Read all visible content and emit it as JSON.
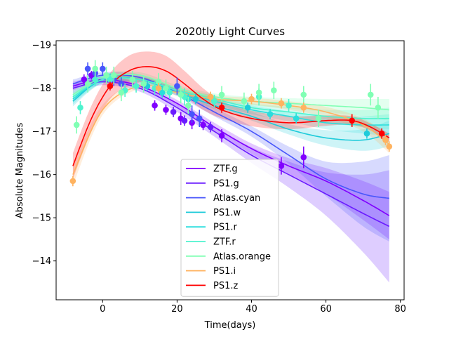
{
  "chart_data": {
    "type": "line",
    "title": "2020tly Light Curves",
    "xlabel": "Time(days)",
    "ylabel": "Absolute Magnitudes",
    "xlim": [
      -12.5,
      81
    ],
    "ylim": [
      -13.1,
      -19.1
    ],
    "y_inverted": true,
    "xticks": [
      0,
      20,
      40,
      60,
      80
    ],
    "xtick_labels": [
      "0",
      "20",
      "40",
      "60",
      "80"
    ],
    "yticks": [
      -14,
      -15,
      -16,
      -17,
      -18,
      -19
    ],
    "ytick_labels": [
      "−14",
      "−15",
      "−16",
      "−17",
      "−18",
      "−19"
    ],
    "grid": false,
    "legend_position": "lower-center",
    "series": [
      {
        "name": "ZTF.g",
        "color": "#8000ff",
        "fit_x": [
          -8,
          0,
          10,
          20,
          30,
          40,
          50,
          60,
          70,
          77
        ],
        "fit_y": [
          -18.05,
          -18.2,
          -18.05,
          -17.65,
          -17.1,
          -16.6,
          -16.2,
          -15.85,
          -15.4,
          -15.05
        ],
        "band_halfwidth": [
          0.1,
          0.07,
          0.07,
          0.08,
          0.1,
          0.12,
          0.18,
          0.3,
          0.45,
          0.55
        ],
        "points": [
          {
            "x": -5,
            "y": -18.2,
            "err": 0.12
          },
          {
            "x": -3,
            "y": -18.3,
            "err": 0.1
          },
          {
            "x": 14,
            "y": -17.6,
            "err": 0.12
          },
          {
            "x": 17,
            "y": -17.5,
            "err": 0.12
          },
          {
            "x": 21,
            "y": -17.3,
            "err": 0.15
          },
          {
            "x": 24,
            "y": -17.2,
            "err": 0.15
          },
          {
            "x": 27,
            "y": -17.15,
            "err": 0.12
          },
          {
            "x": 32,
            "y": -16.9,
            "err": 0.15
          },
          {
            "x": 48,
            "y": -16.2,
            "err": 0.2
          },
          {
            "x": 54,
            "y": -16.4,
            "err": 0.25
          }
        ]
      },
      {
        "name": "PS1.g",
        "color": "#6a1bff",
        "fit_x": [
          -8,
          0,
          10,
          20,
          30,
          40,
          50,
          60,
          70,
          77
        ],
        "fit_y": [
          -18.0,
          -18.15,
          -18.0,
          -17.55,
          -17.0,
          -16.45,
          -16.0,
          -15.55,
          -15.1,
          -14.8
        ],
        "band_halfwidth": [
          0.12,
          0.08,
          0.08,
          0.1,
          0.12,
          0.18,
          0.3,
          0.5,
          0.9,
          1.3
        ],
        "points": [
          {
            "x": 19,
            "y": -17.45,
            "err": 0.12
          },
          {
            "x": 22,
            "y": -17.25,
            "err": 0.12
          },
          {
            "x": 29,
            "y": -17.1,
            "err": 0.12
          }
        ]
      },
      {
        "name": "Atlas.cyan",
        "color": "#4856fb",
        "fit_x": [
          -8,
          0,
          10,
          20,
          30,
          40,
          50,
          60,
          70,
          77
        ],
        "fit_y": [
          -18.1,
          -18.3,
          -18.25,
          -17.9,
          -17.45,
          -17.0,
          -16.45,
          -15.9,
          -15.55,
          -15.45
        ],
        "band_halfwidth": [
          0.1,
          0.07,
          0.07,
          0.08,
          0.1,
          0.12,
          0.2,
          0.4,
          0.75,
          1.0
        ],
        "points": [
          {
            "x": -4,
            "y": -18.45,
            "err": 0.15
          },
          {
            "x": -2,
            "y": -18.35,
            "err": 0.15
          },
          {
            "x": 0,
            "y": -18.45,
            "err": 0.15
          },
          {
            "x": 3,
            "y": -18.2,
            "err": 0.15
          },
          {
            "x": 5,
            "y": -18.1,
            "err": 0.15
          },
          {
            "x": 20,
            "y": -18.05,
            "err": 0.2
          },
          {
            "x": 24,
            "y": -17.4,
            "err": 0.2
          },
          {
            "x": 26,
            "y": -17.3,
            "err": 0.2
          }
        ]
      },
      {
        "name": "PS1.w",
        "color": "#1ecbda",
        "fit_x": [
          -8,
          0,
          10,
          20,
          30,
          40,
          50,
          60,
          70,
          77
        ],
        "fit_y": [
          -17.7,
          -18.2,
          -18.2,
          -17.9,
          -17.6,
          -17.35,
          -17.05,
          -16.85,
          -16.8,
          -16.95
        ],
        "band_halfwidth": [
          0.12,
          0.08,
          0.07,
          0.07,
          0.08,
          0.1,
          0.12,
          0.18,
          0.25,
          0.3
        ],
        "points": [
          {
            "x": 12,
            "y": -18.05,
            "err": 0.12
          },
          {
            "x": 25,
            "y": -17.75,
            "err": 0.12
          },
          {
            "x": 39,
            "y": -17.55,
            "err": 0.12
          },
          {
            "x": 71,
            "y": -16.95,
            "err": 0.12
          }
        ]
      },
      {
        "name": "PS1.r",
        "color": "#2adddd",
        "fit_x": [
          -8,
          0,
          10,
          20,
          30,
          40,
          50,
          60,
          70,
          77
        ],
        "fit_y": [
          -17.75,
          -18.2,
          -18.2,
          -17.95,
          -17.7,
          -17.5,
          -17.35,
          -17.2,
          -17.15,
          -17.15
        ],
        "band_halfwidth": [
          0.12,
          0.08,
          0.07,
          0.07,
          0.08,
          0.1,
          0.12,
          0.15,
          0.2,
          0.25
        ],
        "points": [
          {
            "x": 16,
            "y": -17.9,
            "err": 0.12
          },
          {
            "x": 23,
            "y": -17.75,
            "err": 0.12
          },
          {
            "x": 45,
            "y": -17.4,
            "err": 0.12
          },
          {
            "x": 52,
            "y": -17.3,
            "err": 0.12
          }
        ]
      },
      {
        "name": "ZTF.r",
        "color": "#4df3ce",
        "fit_x": [
          -8,
          0,
          10,
          20,
          30,
          40,
          50,
          60,
          70,
          77
        ],
        "fit_y": [
          -17.8,
          -18.2,
          -18.2,
          -17.95,
          -17.75,
          -17.55,
          -17.45,
          -17.35,
          -17.3,
          -17.3
        ],
        "band_halfwidth": [
          0.12,
          0.08,
          0.07,
          0.07,
          0.08,
          0.1,
          0.12,
          0.15,
          0.2,
          0.25
        ],
        "points": [
          {
            "x": -6,
            "y": -17.55,
            "err": 0.15
          },
          {
            "x": -2,
            "y": -18.2,
            "err": 0.15
          },
          {
            "x": 2,
            "y": -18.2,
            "err": 0.15
          },
          {
            "x": 6,
            "y": -17.95,
            "err": 0.15
          },
          {
            "x": 9,
            "y": -18.05,
            "err": 0.15
          },
          {
            "x": 14,
            "y": -18.0,
            "err": 0.15
          },
          {
            "x": 18,
            "y": -17.9,
            "err": 0.15
          },
          {
            "x": 22,
            "y": -17.8,
            "err": 0.2
          },
          {
            "x": 30,
            "y": -17.7,
            "err": 0.15
          },
          {
            "x": 42,
            "y": -17.8,
            "err": 0.2
          },
          {
            "x": 50,
            "y": -17.6,
            "err": 0.15
          },
          {
            "x": 58,
            "y": -17.3,
            "err": 0.2
          }
        ]
      },
      {
        "name": "Atlas.orange",
        "color": "#80ffb4",
        "fit_x": [
          -8,
          0,
          10,
          20,
          30,
          40,
          50,
          60,
          70,
          77
        ],
        "fit_y": [
          -17.85,
          -18.25,
          -18.3,
          -18.0,
          -17.8,
          -17.7,
          -17.65,
          -17.6,
          -17.55,
          -17.5
        ],
        "band_halfwidth": [
          0.12,
          0.08,
          0.07,
          0.07,
          0.08,
          0.1,
          0.12,
          0.15,
          0.2,
          0.25
        ],
        "points": [
          {
            "x": -7,
            "y": -17.15,
            "err": 0.2
          },
          {
            "x": -4,
            "y": -18.1,
            "err": 0.2
          },
          {
            "x": -2,
            "y": -18.45,
            "err": 0.2
          },
          {
            "x": 1,
            "y": -18.3,
            "err": 0.2
          },
          {
            "x": 3,
            "y": -18.3,
            "err": 0.2
          },
          {
            "x": 5,
            "y": -17.9,
            "err": 0.2
          },
          {
            "x": 8,
            "y": -18.2,
            "err": 0.2
          },
          {
            "x": 11,
            "y": -18.1,
            "err": 0.2
          },
          {
            "x": 15,
            "y": -18.15,
            "err": 0.2
          },
          {
            "x": 17,
            "y": -18.0,
            "err": 0.2
          },
          {
            "x": 21,
            "y": -17.85,
            "err": 0.2
          },
          {
            "x": 23,
            "y": -17.6,
            "err": 0.2
          },
          {
            "x": 32,
            "y": -17.85,
            "err": 0.2
          },
          {
            "x": 38,
            "y": -17.7,
            "err": 0.2
          },
          {
            "x": 42,
            "y": -17.9,
            "err": 0.2
          },
          {
            "x": 46,
            "y": -17.95,
            "err": 0.2
          },
          {
            "x": 54,
            "y": -17.85,
            "err": 0.2
          },
          {
            "x": 58,
            "y": -17.3,
            "err": 0.2
          },
          {
            "x": 72,
            "y": -17.85,
            "err": 0.25
          },
          {
            "x": 74,
            "y": -17.55,
            "err": 0.25
          }
        ]
      },
      {
        "name": "PS1.i",
        "color": "#ffb360",
        "fit_x": [
          -8,
          0,
          10,
          20,
          30,
          40,
          50,
          60,
          70,
          77
        ],
        "fit_y": [
          -16.0,
          -17.5,
          -18.05,
          -17.9,
          -17.75,
          -17.7,
          -17.6,
          -17.45,
          -17.15,
          -16.7
        ],
        "band_halfwidth": [
          0.25,
          0.12,
          0.07,
          0.07,
          0.08,
          0.08,
          0.1,
          0.12,
          0.15,
          0.2
        ],
        "points": [
          {
            "x": -8,
            "y": -15.85,
            "err": 0.12
          },
          {
            "x": 15,
            "y": -18.0,
            "err": 0.12
          },
          {
            "x": 29,
            "y": -17.8,
            "err": 0.12
          },
          {
            "x": 40,
            "y": -17.75,
            "err": 0.12
          },
          {
            "x": 48,
            "y": -17.65,
            "err": 0.12
          },
          {
            "x": 54,
            "y": -17.55,
            "err": 0.12
          },
          {
            "x": 76,
            "y": -16.8,
            "err": 0.12
          },
          {
            "x": 77,
            "y": -16.65,
            "err": 0.12
          }
        ]
      },
      {
        "name": "PS1.z",
        "color": "#ff0000",
        "fit_x": [
          -8,
          -3,
          2,
          7,
          12,
          17,
          22,
          27,
          32,
          40,
          50,
          60,
          67,
          72,
          77
        ],
        "fit_y": [
          -16.2,
          -17.3,
          -18.05,
          -18.4,
          -18.5,
          -18.4,
          -18.1,
          -17.75,
          -17.5,
          -17.3,
          -17.2,
          -17.25,
          -17.25,
          -17.1,
          -16.85
        ],
        "band_halfwidth": [
          0.3,
          0.3,
          0.3,
          0.35,
          0.35,
          0.35,
          0.3,
          0.25,
          0.2,
          0.18,
          0.15,
          0.12,
          0.1,
          0.08,
          0.1
        ],
        "points": [
          {
            "x": 2,
            "y": -18.05,
            "err": 0.1
          },
          {
            "x": 32,
            "y": -17.55,
            "err": 0.12
          },
          {
            "x": 67,
            "y": -17.25,
            "err": 0.15
          },
          {
            "x": 75,
            "y": -16.95,
            "err": 0.12
          }
        ]
      }
    ]
  }
}
